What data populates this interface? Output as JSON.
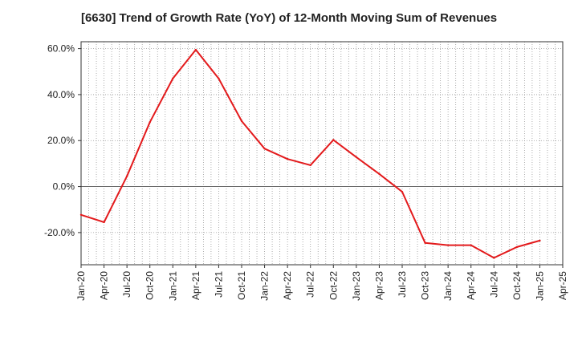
{
  "chart_data": {
    "type": "line",
    "title": "[6630]  Trend of Growth Rate (YoY) of 12-Month Moving Sum of Revenues",
    "xlabel": "",
    "ylabel": "",
    "x_tick_labels": [
      "Jan-20",
      "Apr-20",
      "Jul-20",
      "Oct-20",
      "Jan-21",
      "Apr-21",
      "Jul-21",
      "Oct-21",
      "Jan-22",
      "Apr-22",
      "Jul-22",
      "Oct-22",
      "Jan-23",
      "Apr-23",
      "Jul-23",
      "Oct-23",
      "Jan-24",
      "Apr-24",
      "Jul-24",
      "Oct-24",
      "Jan-25",
      "Apr-25"
    ],
    "y_tick_labels": [
      "60.0%",
      "40.0%",
      "20.0%",
      "0.0%",
      "-20.0%"
    ],
    "y_ticks": [
      60,
      40,
      20,
      0,
      -20
    ],
    "ylim": [
      -34,
      63
    ],
    "grid": true,
    "series": [
      {
        "color": "#e31a1c",
        "points": [
          {
            "x": "Jan-20",
            "y": -12.3
          },
          {
            "x": "Apr-20",
            "y": -15.5
          },
          {
            "x": "Jul-20",
            "y": 4.5
          },
          {
            "x": "Oct-20",
            "y": 28.0
          },
          {
            "x": "Jan-21",
            "y": 47.0
          },
          {
            "x": "Apr-21",
            "y": 59.5
          },
          {
            "x": "Jul-21",
            "y": 47.0
          },
          {
            "x": "Oct-21",
            "y": 28.5
          },
          {
            "x": "Jan-22",
            "y": 16.5
          },
          {
            "x": "Apr-22",
            "y": 12.0
          },
          {
            "x": "Jul-22",
            "y": 9.3
          },
          {
            "x": "Oct-22",
            "y": 20.3
          },
          {
            "x": "Jan-23",
            "y": 12.8
          },
          {
            "x": "Apr-23",
            "y": 5.5
          },
          {
            "x": "Jul-23",
            "y": -2.3
          },
          {
            "x": "Oct-23",
            "y": -24.5
          },
          {
            "x": "Jan-24",
            "y": -25.5
          },
          {
            "x": "Apr-24",
            "y": -25.5
          },
          {
            "x": "Jul-24",
            "y": -31.0
          },
          {
            "x": "Oct-24",
            "y": -26.3
          },
          {
            "x": "Jan-25",
            "y": -23.5
          }
        ]
      }
    ]
  }
}
